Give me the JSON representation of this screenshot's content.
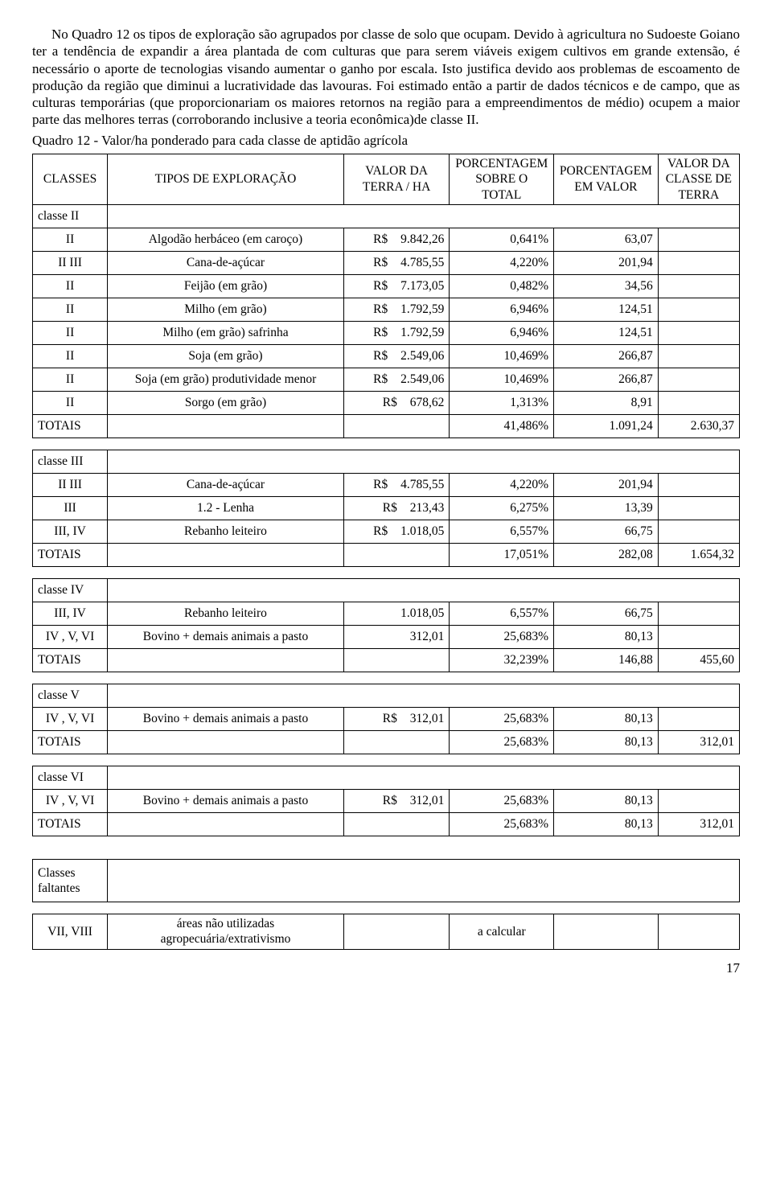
{
  "paragraph": "No Quadro 12 os tipos de exploração são agrupados por classe de solo que ocupam. Devido à agricultura no Sudoeste Goiano ter a tendência de expandir a área plantada de com culturas que para serem viáveis exigem cultivos em grande extensão, é necessário o aporte de tecnologias visando aumentar o ganho por escala. Isto justifica devido aos problemas de escoamento de produção da região que diminui a lucratividade das lavouras. Foi estimado então a partir de dados técnicos e de campo, que as culturas temporárias (que proporcionariam os maiores retornos na região para a empreendimentos de médio) ocupem a maior parte das melhores terras (corroborando inclusive a teoria econômica)de classe II.",
  "caption": "Quadro 12 - Valor/ha ponderado para cada classe de aptidão agrícola",
  "headers": {
    "classes": "CLASSES",
    "tipos": "TIPOS DE EXPLORAÇÃO",
    "valor": "VALOR DA TERRA / HA",
    "pct_total": "PORCENTAGEM SOBRE O TOTAL",
    "pct_valor": "PORCENTAGEM EM VALOR",
    "valor_classe": "VALOR DA CLASSE DE TERRA"
  },
  "labels": {
    "totais": "TOTAIS",
    "classes_faltantes": "Classes faltantes",
    "a_calcular": "a calcular",
    "currency": "R$"
  },
  "groups": [
    {
      "title": "classe II",
      "rows": [
        {
          "c": "II",
          "t": "Algodão herbáceo (em caroço)",
          "cur": "R$",
          "v": "9.842,26",
          "p1": "0,641%",
          "p2": "63,07"
        },
        {
          "c": "II III",
          "t": "Cana-de-açúcar",
          "cur": "R$",
          "v": "4.785,55",
          "p1": "4,220%",
          "p2": "201,94"
        },
        {
          "c": "II",
          "t": "Feijão (em grão)",
          "cur": "R$",
          "v": "7.173,05",
          "p1": "0,482%",
          "p2": "34,56"
        },
        {
          "c": "II",
          "t": "Milho (em grão)",
          "cur": "R$",
          "v": "1.792,59",
          "p1": "6,946%",
          "p2": "124,51"
        },
        {
          "c": "II",
          "t": "Milho (em grão) safrinha",
          "cur": "R$",
          "v": "1.792,59",
          "p1": "6,946%",
          "p2": "124,51"
        },
        {
          "c": "II",
          "t": "Soja (em grão)",
          "cur": "R$",
          "v": "2.549,06",
          "p1": "10,469%",
          "p2": "266,87"
        },
        {
          "c": "II",
          "t": "Soja (em grão) produtividade menor",
          "cur": "R$",
          "v": "2.549,06",
          "p1": "10,469%",
          "p2": "266,87"
        },
        {
          "c": "II",
          "t": "Sorgo (em grão)",
          "cur": "R$",
          "v": "678,62",
          "p1": "1,313%",
          "p2": "8,91"
        }
      ],
      "totais": {
        "p1": "41,486%",
        "p2": "1.091,24",
        "final": "2.630,37"
      }
    },
    {
      "title": "classe III",
      "rows": [
        {
          "c": "II III",
          "t": "Cana-de-açúcar",
          "cur": "R$",
          "v": "4.785,55",
          "p1": "4,220%",
          "p2": "201,94"
        },
        {
          "c": "III",
          "t": "1.2 - Lenha",
          "cur": "R$",
          "v": "213,43",
          "p1": "6,275%",
          "p2": "13,39"
        },
        {
          "c": "III, IV",
          "t": "Rebanho leiteiro",
          "cur": "R$",
          "v": "1.018,05",
          "p1": "6,557%",
          "p2": "66,75"
        }
      ],
      "totais": {
        "p1": "17,051%",
        "p2": "282,08",
        "final": "1.654,32"
      }
    },
    {
      "title": "classe IV",
      "rows": [
        {
          "c": "III, IV",
          "t": "Rebanho leiteiro",
          "cur": "",
          "v": "1.018,05",
          "p1": "6,557%",
          "p2": "66,75"
        },
        {
          "c": "IV , V, VI",
          "t": "Bovino + demais animais a pasto",
          "cur": "",
          "v": "312,01",
          "p1": "25,683%",
          "p2": "80,13"
        }
      ],
      "totais": {
        "p1": "32,239%",
        "p2": "146,88",
        "final": "455,60"
      }
    },
    {
      "title": "classe V",
      "rows": [
        {
          "c": "IV , V, VI",
          "t": "Bovino + demais animais a pasto",
          "cur": "R$",
          "v": "312,01",
          "p1": "25,683%",
          "p2": "80,13"
        }
      ],
      "totais": {
        "p1": "25,683%",
        "p2": "80,13",
        "final": "312,01"
      }
    },
    {
      "title": "classe VI",
      "rows": [
        {
          "c": "IV , V, VI",
          "t": "Bovino + demais animais a pasto",
          "cur": "R$",
          "v": "312,01",
          "p1": "25,683%",
          "p2": "80,13"
        }
      ],
      "totais": {
        "p1": "25,683%",
        "p2": "80,13",
        "final": "312,01"
      }
    }
  ],
  "faltantes_row": {
    "c": "VII, VIII",
    "t": "áreas não utilizadas agropecuária/extrativismo"
  },
  "page_number": "17"
}
